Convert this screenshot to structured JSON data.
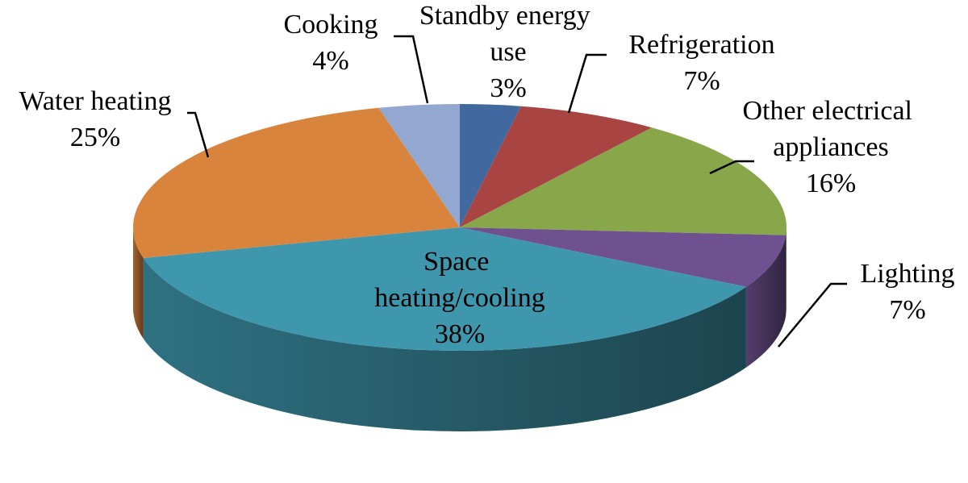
{
  "chart_data": {
    "type": "pie3d",
    "categories": [
      "Standby energy use",
      "Refrigeration",
      "Other electrical appliances",
      "Lighting",
      "Space heating/cooling",
      "Water heating",
      "Cooking"
    ],
    "values": [
      3,
      7,
      16,
      7,
      38,
      25,
      4
    ],
    "value_labels": [
      "3%",
      "7%",
      "16%",
      "7%",
      "38%",
      "25%",
      "4%"
    ],
    "colors": [
      "#4169a0",
      "#a84442",
      "#88a74b",
      "#6f5191",
      "#3f97ad",
      "#d9843d",
      "#93a8d0"
    ]
  }
}
